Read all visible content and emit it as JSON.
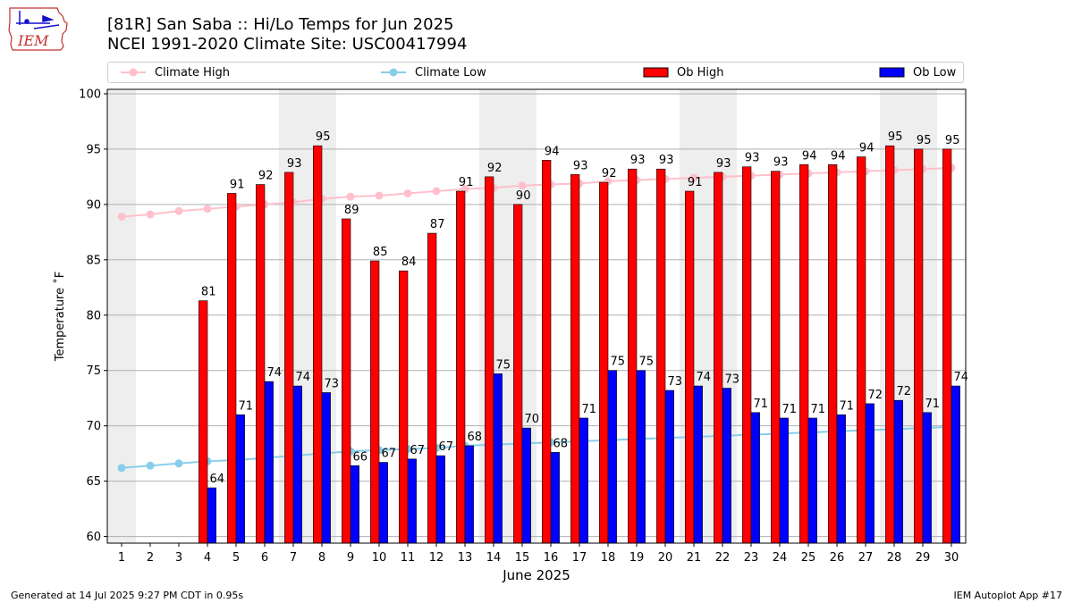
{
  "logo": {
    "text": "IEM"
  },
  "title": {
    "line1": "[81R] San Saba :: Hi/Lo Temps for Jun 2025",
    "line2": "NCEI 1991-2020 Climate Site: USC00417994"
  },
  "legend": {
    "climate_high": "Climate High",
    "climate_low": "Climate Low",
    "ob_high": "Ob High",
    "ob_low": "Ob Low"
  },
  "colors": {
    "ob_high": "#ff0000",
    "ob_low": "#0000ff",
    "climate_high": "#ffc0cb",
    "climate_low": "#87ceeb",
    "weekend_shade": "#eeeeee",
    "grid": "#b0b0b0"
  },
  "footer": {
    "left": "Generated at 14 Jul 2025 9:27 PM CDT in 0.95s",
    "right": "IEM Autoplot App #17"
  },
  "chart_data": {
    "type": "bar",
    "xlabel": "June 2025",
    "ylabel": "Temperature ˚F",
    "ylim": [
      59.4,
      100.4
    ],
    "yticks": [
      60,
      65,
      70,
      75,
      80,
      85,
      90,
      95,
      100
    ],
    "grid": true,
    "legend_position": "top",
    "categories": [
      "1",
      "2",
      "3",
      "4",
      "5",
      "6",
      "7",
      "8",
      "9",
      "10",
      "11",
      "12",
      "13",
      "14",
      "15",
      "16",
      "17",
      "18",
      "19",
      "20",
      "21",
      "22",
      "23",
      "24",
      "25",
      "26",
      "27",
      "28",
      "29",
      "30"
    ],
    "shaded_days": [
      1,
      7,
      8,
      14,
      15,
      21,
      22,
      28,
      29
    ],
    "series": [
      {
        "name": "Ob High",
        "kind": "bar",
        "values": [
          null,
          null,
          null,
          81.3,
          91.0,
          91.8,
          92.9,
          95.3,
          88.7,
          84.9,
          84.0,
          87.4,
          91.2,
          92.5,
          90.0,
          94.0,
          92.7,
          92.0,
          93.2,
          93.2,
          91.2,
          92.9,
          93.4,
          93.0,
          93.6,
          93.6,
          94.3,
          95.3,
          95.0,
          95.0
        ],
        "labels": [
          "",
          "",
          "",
          "81",
          "91",
          "92",
          "93",
          "95",
          "89",
          "85",
          "84",
          "87",
          "91",
          "92",
          "90",
          "94",
          "93",
          "92",
          "93",
          "93",
          "91",
          "93",
          "93",
          "93",
          "94",
          "94",
          "94",
          "95",
          "95",
          "95"
        ]
      },
      {
        "name": "Ob Low",
        "kind": "bar",
        "values": [
          null,
          null,
          null,
          64.4,
          71.0,
          74.0,
          73.6,
          73.0,
          66.4,
          66.7,
          67.0,
          67.3,
          68.2,
          74.7,
          69.8,
          67.6,
          70.7,
          75.0,
          75.0,
          73.2,
          73.6,
          73.4,
          71.2,
          70.7,
          70.7,
          71.0,
          72.0,
          72.3,
          71.2,
          73.6
        ],
        "labels": [
          "",
          "",
          "",
          "64",
          "71",
          "74",
          "74",
          "73",
          "66",
          "67",
          "67",
          "67",
          "68",
          "75",
          "70",
          "68",
          "71",
          "75",
          "75",
          "73",
          "74",
          "73",
          "71",
          "71",
          "71",
          "71",
          "72",
          "72",
          "71",
          "74"
        ]
      },
      {
        "name": "Climate High",
        "kind": "line",
        "values": [
          88.9,
          89.1,
          89.4,
          89.6,
          89.8,
          90.0,
          90.2,
          90.5,
          90.7,
          90.8,
          91.0,
          91.2,
          91.4,
          91.5,
          91.7,
          91.8,
          91.9,
          92.1,
          92.2,
          92.3,
          92.4,
          92.5,
          92.6,
          92.7,
          92.8,
          92.9,
          93.0,
          93.1,
          93.2,
          93.3
        ]
      },
      {
        "name": "Climate Low",
        "kind": "line",
        "values": [
          66.2,
          66.4,
          66.6,
          66.8,
          66.9,
          67.1,
          67.3,
          67.5,
          67.7,
          67.8,
          67.9,
          68.0,
          68.2,
          68.3,
          68.4,
          68.5,
          68.6,
          68.7,
          68.8,
          68.9,
          69.0,
          69.1,
          69.2,
          69.3,
          69.4,
          69.5,
          69.6,
          69.7,
          69.8,
          69.9
        ]
      }
    ]
  }
}
